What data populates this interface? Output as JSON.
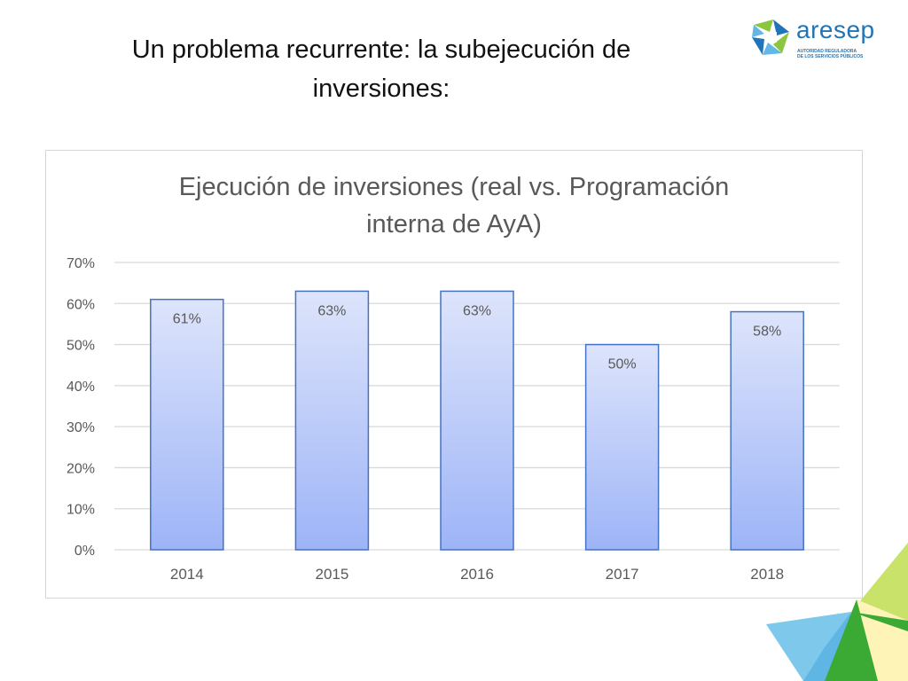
{
  "slide": {
    "title_line1": "Un problema recurrente: la subejecución de",
    "title_line2": "inversiones:"
  },
  "logo": {
    "name": "aresep",
    "subtitle_line1": "AUTORIDAD REGULADORA",
    "subtitle_line2": "DE LOS SERVICIOS PÚBLICOS",
    "colors": {
      "blue": "#1f75b8",
      "green": "#8cc63f",
      "light_blue": "#63b7e6"
    }
  },
  "chart_data": {
    "type": "bar",
    "title_line1": "Ejecución de inversiones (real vs. Programación",
    "title_line2": "interna de AyA)",
    "categories": [
      "2014",
      "2015",
      "2016",
      "2017",
      "2018"
    ],
    "values": [
      61,
      63,
      63,
      50,
      58
    ],
    "data_labels": [
      "61%",
      "63%",
      "63%",
      "50%",
      "58%"
    ],
    "ylim": [
      0,
      70
    ],
    "y_ticks": [
      "0%",
      "10%",
      "20%",
      "30%",
      "40%",
      "50%",
      "60%",
      "70%"
    ],
    "grid": true,
    "legend": "none",
    "colors": {
      "bar_top": "#dde4fb",
      "bar_bottom": "#9db4f7",
      "bar_border": "#4472c4",
      "grid": "#d9d9d9",
      "text": "#595959"
    }
  }
}
